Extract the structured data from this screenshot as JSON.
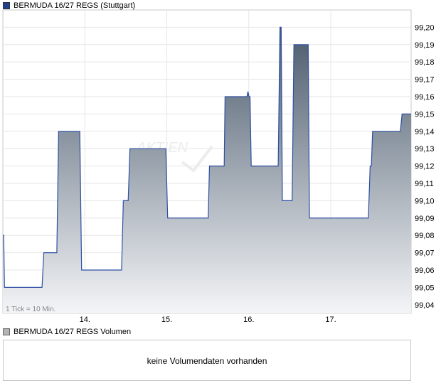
{
  "legend_main": {
    "label": "BERMUDA 16/27 REGS (Stuttgart)",
    "color": "#1f3f8f"
  },
  "legend_volume": {
    "label": "BERMUDA 16/27 REGS Volumen",
    "color": "#b4b4b4"
  },
  "tick_note": "1 Tick = 10 Min.",
  "watermark": "AKTIEN",
  "volume_message": "keine Volumendaten vorhanden",
  "chart_data": {
    "type": "area",
    "title": "",
    "xlabel": "",
    "ylabel": "",
    "x_ticks": [
      "14.",
      "15.",
      "16.",
      "17."
    ],
    "y_ticks": [
      "99,04",
      "99,05",
      "99,06",
      "99,07",
      "99,08",
      "99,09",
      "99,10",
      "99,11",
      "99,12",
      "99,13",
      "99,14",
      "99,15",
      "99,16",
      "99,17",
      "99,18",
      "99,19",
      "99,20"
    ],
    "ylim": [
      99.035,
      99.21
    ],
    "xlim": [
      13.0,
      17.98
    ],
    "line_color": "#2e4fa3",
    "fill_top": "#4a5a6c",
    "fill_bottom": "#f4f5f7",
    "grid": true,
    "x": [
      13.0,
      13.02,
      13.5,
      13.68,
      13.96,
      14.47,
      14.55,
      14.63,
      15.01,
      15.49,
      15.52,
      15.69,
      15.71,
      15.84,
      16.0,
      16.03,
      16.07,
      16.38,
      16.41,
      16.5,
      16.55,
      16.71,
      16.74,
      17.02,
      17.48,
      17.51,
      17.61,
      17.87,
      17.98
    ],
    "y": [
      99.08,
      99.05,
      99.07,
      99.14,
      99.06,
      99.1,
      99.13,
      99.13,
      99.09,
      99.09,
      99.12,
      99.12,
      99.16,
      99.16,
      99.16,
      99.12,
      99.12,
      99.2,
      99.1,
      99.1,
      99.19,
      99.19,
      99.09,
      99.09,
      99.12,
      99.14,
      99.14,
      99.15,
      99.15
    ],
    "spike": {
      "x": 15.99,
      "y": 99.163
    }
  }
}
